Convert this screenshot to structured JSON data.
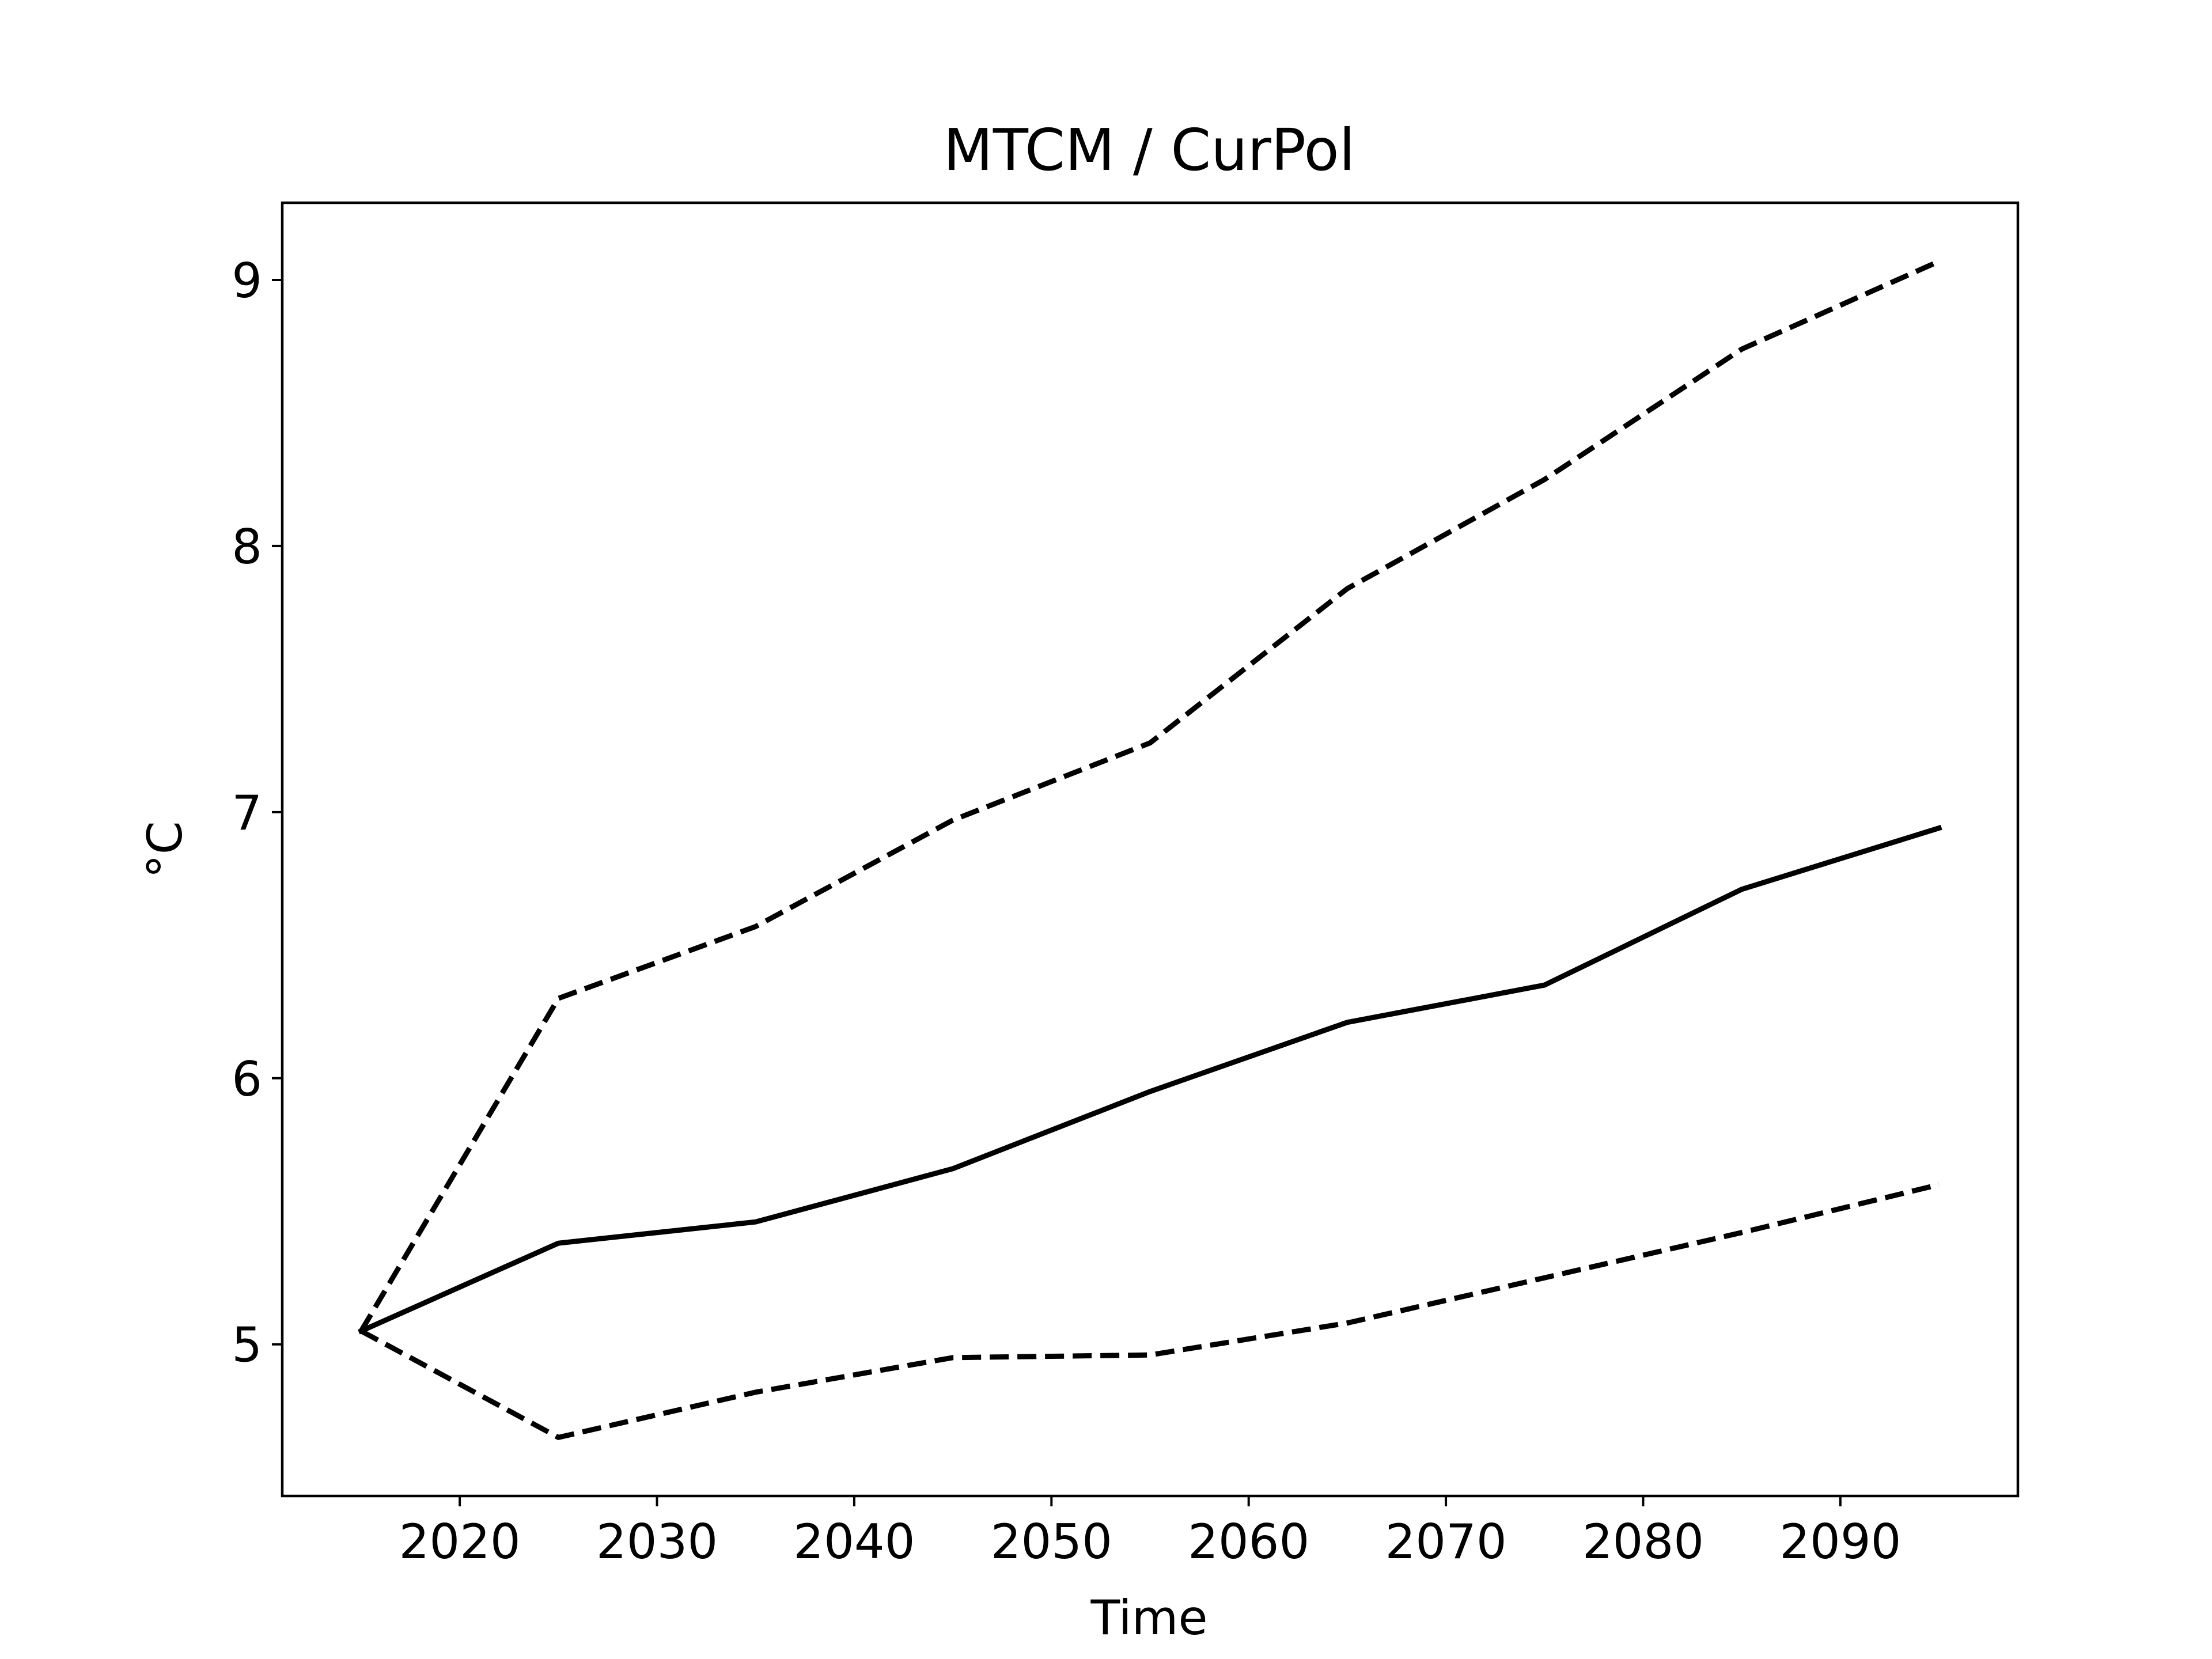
{
  "chart_data": {
    "type": "line",
    "title": "MTCM / CurPol",
    "xlabel": "Time",
    "ylabel": "°C",
    "x": [
      2015,
      2025,
      2035,
      2045,
      2055,
      2065,
      2075,
      2085,
      2095
    ],
    "xlim": [
      2011,
      2099
    ],
    "ylim": [
      4.43,
      9.29
    ],
    "xticks": [
      2020,
      2030,
      2040,
      2050,
      2060,
      2070,
      2080,
      2090
    ],
    "yticks": [
      5,
      6,
      7,
      8,
      9
    ],
    "grid": false,
    "series": [
      {
        "style": "solid",
        "color": "#000000",
        "values": [
          5.05,
          5.38,
          5.46,
          5.66,
          5.95,
          6.21,
          6.35,
          6.71,
          6.94
        ]
      },
      {
        "style": "dashed",
        "color": "#000000",
        "values": [
          5.05,
          6.3,
          6.57,
          6.97,
          7.26,
          7.84,
          8.25,
          8.74,
          9.07
        ]
      },
      {
        "style": "dashed",
        "color": "#000000",
        "values": [
          5.05,
          4.65,
          4.82,
          4.95,
          4.96,
          5.08,
          5.25,
          5.42,
          5.6
        ]
      }
    ]
  }
}
